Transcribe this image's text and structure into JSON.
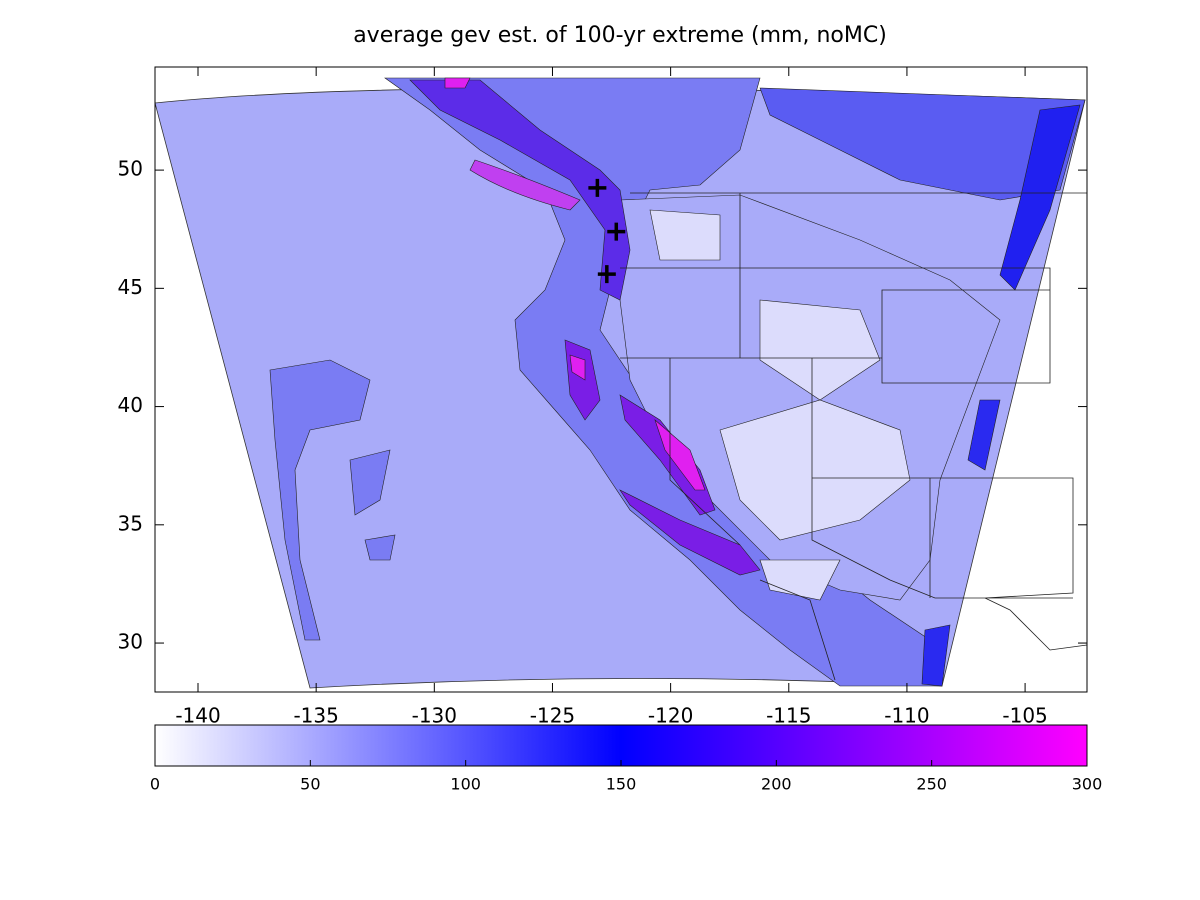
{
  "chart_data": {
    "type": "contour-map",
    "title": "average gev est. of 100-yr extreme (mm, noMC)",
    "xlim": [
      -141.82,
      -102.38
    ],
    "xticks": [
      -140,
      -135,
      -130,
      -125,
      -120,
      -115,
      -110,
      -105
    ],
    "ylim": [
      27.93,
      54.36
    ],
    "yticks": [
      30,
      35,
      40,
      45,
      50
    ],
    "colorbar": {
      "clim": [
        0,
        300
      ],
      "ticks": [
        0,
        50,
        100,
        150,
        200,
        250,
        300
      ],
      "colormap": [
        "#ffffff",
        "#0000ff",
        "#ff00ff"
      ]
    },
    "markers": [
      {
        "lon": -123.1,
        "lat": 49.25
      },
      {
        "lon": -122.3,
        "lat": 47.4
      },
      {
        "lon": -122.7,
        "lat": 45.6
      }
    ]
  }
}
